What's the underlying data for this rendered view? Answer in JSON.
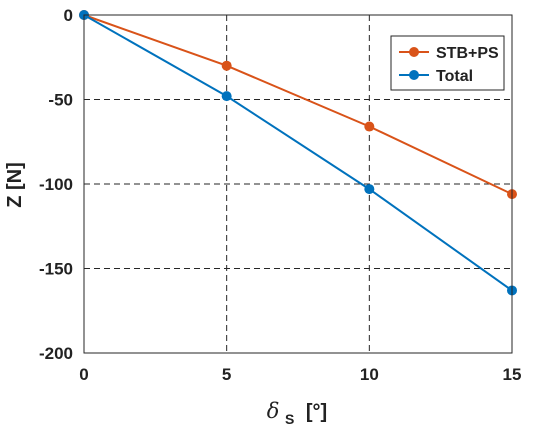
{
  "chart_data": {
    "type": "line",
    "title": "",
    "xlabel_symbol": "δ",
    "xlabel_subscript": "S",
    "xlabel_unit": "[°]",
    "ylabel": "Z [N]",
    "xlim": [
      0,
      15
    ],
    "ylim": [
      -200,
      0
    ],
    "xticks": [
      0,
      5,
      10,
      15
    ],
    "yticks": [
      0,
      -50,
      -100,
      -150,
      -200
    ],
    "xtick_labels": [
      "0",
      "5",
      "10",
      "15"
    ],
    "ytick_labels": [
      "0",
      "-50",
      "-100",
      "-150",
      "-200"
    ],
    "grid": true,
    "legend_position": "top-right",
    "x": [
      0,
      5,
      10,
      15
    ],
    "series": [
      {
        "name": "STB+PS",
        "color": "#d95319",
        "values": [
          0,
          -30,
          -66,
          -106
        ]
      },
      {
        "name": "Total",
        "color": "#0072bd",
        "values": [
          0,
          -48,
          -103,
          -163
        ]
      }
    ]
  }
}
